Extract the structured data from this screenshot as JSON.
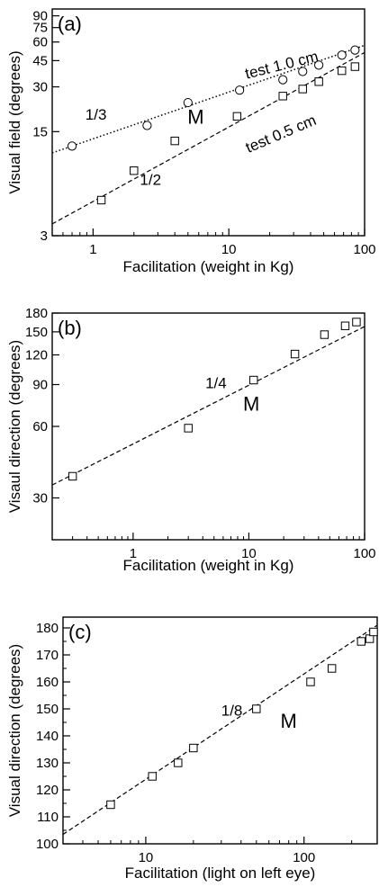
{
  "chart_data": [
    {
      "type": "scatter",
      "panel": "(a)",
      "xlabel": "Facilitation (weight in Kg)",
      "ylabel": "Visual field (degrees)",
      "xscale": "log",
      "yscale": "log",
      "xlim": [
        0.5,
        100
      ],
      "ylim": [
        3,
        100
      ],
      "xticks": [
        1,
        10,
        100
      ],
      "xtick_labels": [
        "1",
        "10",
        "100"
      ],
      "yticks": [
        3,
        15,
        30,
        45,
        60,
        75,
        90
      ],
      "ytick_labels": [
        "3",
        "15",
        "30",
        "45",
        "60",
        "75",
        "90"
      ],
      "series": [
        {
          "name": "test 1.0 cm",
          "marker": "circle",
          "x": [
            0.7,
            2.5,
            5,
            12,
            25,
            35,
            46,
            68,
            85
          ],
          "y": [
            12,
            16.5,
            23.5,
            28.5,
            33.5,
            38,
            42,
            49,
            53
          ]
        },
        {
          "name": "test 0.5 cm",
          "marker": "square",
          "x": [
            1.15,
            2,
            4,
            11.5,
            25,
            35,
            46,
            68,
            85
          ],
          "y": [
            5.2,
            8.2,
            13,
            19,
            26,
            29,
            32.5,
            38.5,
            41
          ]
        }
      ],
      "fits": [
        {
          "style": "dotted",
          "from": [
            0.5,
            10.8
          ],
          "to": [
            100,
            57
          ]
        },
        {
          "style": "dashed",
          "from": [
            0.5,
            3.6
          ],
          "to": [
            100,
            51
          ]
        }
      ],
      "annotations": [
        {
          "text": "test 1.0 cm",
          "x": 25,
          "y": 39,
          "angle": -14
        },
        {
          "text": "test 0.5 cm",
          "x": 25,
          "y": 13.5,
          "angle": -23
        },
        {
          "text": "1/3",
          "x": 1.05,
          "y": 18,
          "angle": 0
        },
        {
          "text": "1/2",
          "x": 2.65,
          "y": 6.6,
          "angle": 0
        },
        {
          "text": "M",
          "x": 5.7,
          "y": 17,
          "angle": 0,
          "big": true
        }
      ]
    },
    {
      "type": "scatter",
      "panel": "(b)",
      "xlabel": "Facilitation (weight in Kg)",
      "ylabel": "Visaul direction (degrees)",
      "xscale": "log",
      "yscale": "log",
      "xlim": [
        0.2,
        100
      ],
      "ylim": [
        20,
        180
      ],
      "xticks": [
        1,
        10,
        100
      ],
      "xtick_labels": [
        "1",
        "10",
        "100"
      ],
      "yticks": [
        30,
        60,
        90,
        120,
        150,
        180
      ],
      "ytick_labels": [
        "30",
        "60",
        "90",
        "120",
        "150",
        "180"
      ],
      "series": [
        {
          "marker": "square",
          "x": [
            0.3,
            3,
            11,
            25,
            45,
            68,
            85
          ],
          "y": [
            37,
            59,
            94,
            121,
            146,
            159,
            165
          ]
        }
      ],
      "fits": [
        {
          "style": "dashed",
          "from": [
            0.2,
            34
          ],
          "to": [
            100,
            158
          ]
        }
      ],
      "annotations": [
        {
          "text": "1/4",
          "x": 5.2,
          "y": 87,
          "angle": 0
        },
        {
          "text": "M",
          "x": 10.5,
          "y": 70,
          "angle": 0,
          "big": true
        }
      ]
    },
    {
      "type": "scatter",
      "panel": "(c)",
      "xlabel": "Facilitation (light on left eye)",
      "ylabel": "Visual direction (degrees)",
      "xscale": "log",
      "yscale": "linear",
      "xlim": [
        3,
        290
      ],
      "ylim": [
        100,
        184
      ],
      "xticks": [
        10,
        100
      ],
      "xtick_labels": [
        "10",
        "100"
      ],
      "yticks": [
        100,
        110,
        120,
        130,
        140,
        150,
        160,
        170,
        180
      ],
      "ytick_labels": [
        "100",
        "110",
        "120",
        "130",
        "140",
        "150",
        "160",
        "170",
        "180"
      ],
      "series": [
        {
          "marker": "square",
          "x": [
            6,
            11,
            16,
            20,
            50,
            110,
            150,
            230,
            260,
            275
          ],
          "y": [
            114.5,
            125,
            130,
            135.5,
            150,
            160,
            165,
            175,
            176,
            178.5
          ]
        }
      ],
      "fits": [
        {
          "style": "dashed",
          "from": [
            3,
            103.5
          ],
          "to": [
            290,
            181
          ]
        }
      ],
      "annotations": [
        {
          "text": "1/8",
          "x": 35,
          "y": 147.5,
          "angle": 0
        },
        {
          "text": "M",
          "x": 80,
          "y": 143,
          "angle": 0,
          "big": true
        }
      ]
    }
  ]
}
